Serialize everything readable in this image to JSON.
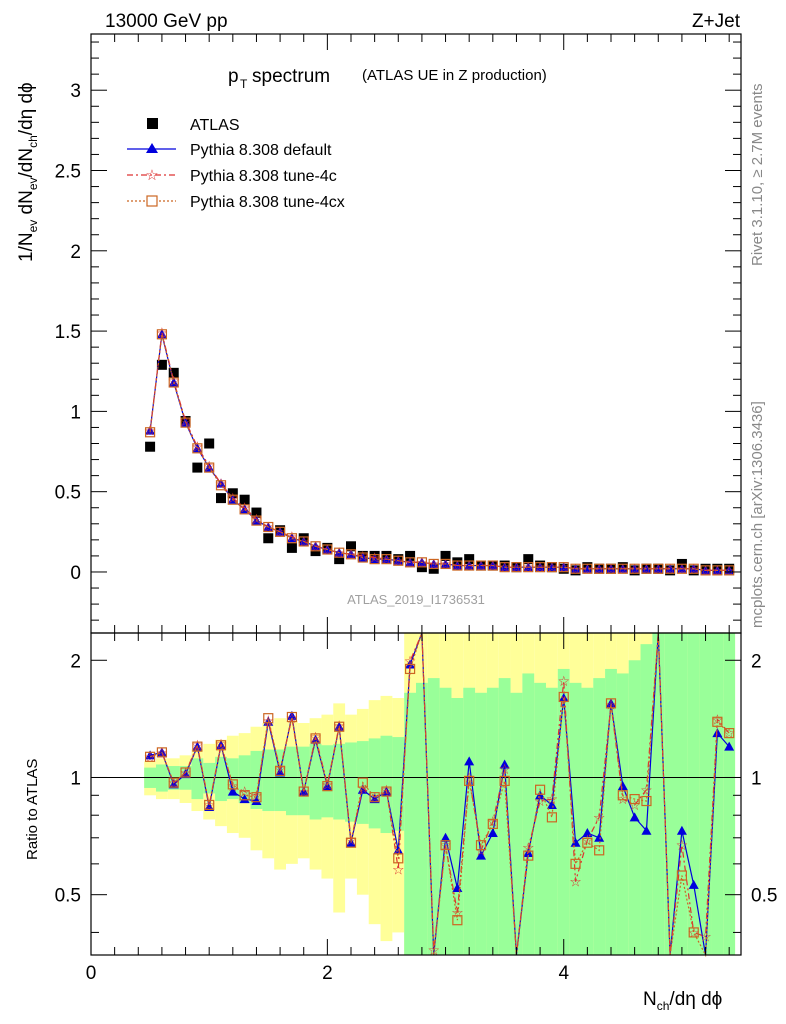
{
  "header": {
    "energy_label": "13000 GeV pp",
    "process_label": "Z+Jet",
    "plot_title_main": "p",
    "plot_title_sub": "T",
    "plot_title_rest": " spectrum",
    "plot_title_paren": "(ATLAS UE in Z production)",
    "analysis_id": "ATLAS_2019_I1736531"
  },
  "sidebar": {
    "rivet_text": "Rivet 3.1.10, ≥ 2.7M events",
    "mcplots_text": "mcplots.cern.ch [arXiv:1306.3436]"
  },
  "axes": {
    "ylabel_main": "1/N",
    "ylabel_ratio": "Ratio to ATLAS",
    "xlabel": "N_ch/dη dϕ",
    "main_yticks": [
      "0",
      "0.5",
      "1",
      "1.5",
      "2",
      "2.5",
      "3"
    ],
    "ratio_yticks": [
      "0.5",
      "1",
      "2"
    ],
    "xticks": [
      "0",
      "2",
      "4"
    ]
  },
  "legend": [
    {
      "name": "ATLAS",
      "color": "#000000",
      "marker": "filled-square",
      "line": "none"
    },
    {
      "name": "Pythia 8.308 default",
      "color": "#0000dd",
      "marker": "filled-triangle",
      "line": "solid"
    },
    {
      "name": "Pythia 8.308 tune-4c",
      "color": "#dd3333",
      "marker": "star",
      "line": "dashdot"
    },
    {
      "name": "Pythia 8.308 tune-4cx",
      "color": "#cc6622",
      "marker": "open-square",
      "line": "dotted"
    }
  ],
  "chart_data": [
    {
      "type": "scatter",
      "panel": "main",
      "xlim": [
        0,
        5.5
      ],
      "ylim": [
        -0.38,
        3.35
      ],
      "x": [
        0.5,
        0.6,
        0.7,
        0.8,
        0.9,
        1.0,
        1.1,
        1.2,
        1.3,
        1.4,
        1.5,
        1.6,
        1.7,
        1.8,
        1.9,
        2.0,
        2.1,
        2.2,
        2.3,
        2.4,
        2.5,
        2.6,
        2.7,
        2.8,
        2.9,
        3.0,
        3.1,
        3.2,
        3.3,
        3.4,
        3.5,
        3.6,
        3.7,
        3.8,
        3.9,
        4.0,
        4.1,
        4.2,
        4.3,
        4.4,
        4.5,
        4.6,
        4.7,
        4.8,
        4.9,
        5.0,
        5.1,
        5.2,
        5.3,
        5.4
      ],
      "series": [
        {
          "name": "ATLAS",
          "values": [
            0.78,
            1.29,
            1.24,
            0.94,
            0.65,
            0.8,
            0.46,
            0.49,
            0.45,
            0.37,
            0.21,
            0.26,
            0.15,
            0.21,
            0.13,
            0.15,
            0.08,
            0.16,
            0.1,
            0.1,
            0.1,
            0.08,
            0.1,
            0.03,
            0.02,
            0.1,
            0.06,
            0.08,
            0.04,
            0.04,
            0.04,
            0.03,
            0.08,
            0.04,
            0.03,
            0.02,
            0.01,
            0.03,
            0.02,
            0.02,
            0.03,
            0.01,
            0.02,
            0.02,
            0.01,
            0.05,
            0.01,
            0.02,
            0.02,
            0.02
          ]
        },
        {
          "name": "Pythia 8.308 default",
          "values": [
            0.88,
            1.48,
            1.18,
            0.93,
            0.77,
            0.65,
            0.55,
            0.45,
            0.39,
            0.32,
            0.28,
            0.25,
            0.21,
            0.19,
            0.16,
            0.14,
            0.12,
            0.11,
            0.09,
            0.08,
            0.08,
            0.07,
            0.06,
            0.06,
            0.05,
            0.05,
            0.04,
            0.04,
            0.04,
            0.04,
            0.03,
            0.03,
            0.03,
            0.03,
            0.03,
            0.03,
            0.02,
            0.02,
            0.02,
            0.02,
            0.02,
            0.02,
            0.02,
            0.02,
            0.02,
            0.02,
            0.02,
            0.01,
            0.01,
            0.01
          ]
        },
        {
          "name": "Pythia 8.308 tune-4c",
          "values": [
            0.88,
            1.49,
            1.19,
            0.94,
            0.78,
            0.66,
            0.55,
            0.46,
            0.4,
            0.33,
            0.28,
            0.25,
            0.22,
            0.19,
            0.16,
            0.14,
            0.12,
            0.11,
            0.1,
            0.09,
            0.08,
            0.07,
            0.06,
            0.06,
            0.05,
            0.05,
            0.04,
            0.04,
            0.04,
            0.04,
            0.03,
            0.03,
            0.03,
            0.03,
            0.03,
            0.03,
            0.02,
            0.02,
            0.02,
            0.02,
            0.02,
            0.02,
            0.02,
            0.02,
            0.02,
            0.02,
            0.02,
            0.01,
            0.01,
            0.01
          ]
        },
        {
          "name": "Pythia 8.308 tune-4cx",
          "values": [
            0.87,
            1.48,
            1.18,
            0.93,
            0.77,
            0.65,
            0.54,
            0.45,
            0.39,
            0.32,
            0.28,
            0.25,
            0.21,
            0.19,
            0.16,
            0.14,
            0.12,
            0.11,
            0.09,
            0.08,
            0.08,
            0.07,
            0.06,
            0.06,
            0.05,
            0.05,
            0.04,
            0.04,
            0.04,
            0.04,
            0.03,
            0.03,
            0.03,
            0.03,
            0.03,
            0.03,
            0.02,
            0.02,
            0.02,
            0.02,
            0.02,
            0.02,
            0.02,
            0.02,
            0.02,
            0.02,
            0.02,
            0.01,
            0.01,
            0.01
          ]
        }
      ]
    },
    {
      "type": "scatter",
      "panel": "ratio",
      "ylog": true,
      "reference_line": 1,
      "xlim": [
        0,
        5.5
      ],
      "ylim": [
        0.35,
        2.35
      ],
      "x": [
        0.5,
        0.6,
        0.7,
        0.8,
        0.9,
        1.0,
        1.1,
        1.2,
        1.3,
        1.4,
        1.5,
        1.6,
        1.7,
        1.8,
        1.9,
        2.0,
        2.1,
        2.2,
        2.3,
        2.4,
        2.5,
        2.6,
        2.7,
        2.8,
        2.9,
        3.0,
        3.1,
        3.2,
        3.3,
        3.4,
        3.5,
        3.6,
        3.7,
        3.8,
        3.9,
        4.0,
        4.1,
        4.2,
        4.3,
        4.4,
        4.5,
        4.6,
        4.7,
        4.8,
        4.9,
        5.0,
        5.1,
        5.2,
        5.3,
        5.4
      ],
      "bands": {
        "x_edges": [
          0.45,
          0.55,
          0.65,
          0.75,
          0.85,
          0.95,
          1.05,
          1.15,
          1.25,
          1.35,
          1.45,
          1.55,
          1.65,
          1.75,
          1.85,
          1.95,
          2.05,
          2.15,
          2.25,
          2.35,
          2.45,
          2.55,
          2.65,
          2.75,
          2.85,
          2.95,
          3.05,
          3.15,
          3.25,
          3.35,
          3.45,
          3.55,
          3.65,
          3.75,
          3.85,
          3.95,
          4.05,
          4.15,
          4.25,
          4.35,
          4.45,
          4.55,
          4.65,
          4.75,
          4.85,
          4.95,
          5.05,
          5.15,
          5.25,
          5.35,
          5.45
        ],
        "green_lo": [
          0.94,
          0.92,
          0.93,
          0.93,
          0.88,
          0.91,
          0.87,
          0.88,
          0.86,
          0.83,
          0.82,
          0.82,
          0.8,
          0.8,
          0.78,
          0.79,
          0.78,
          0.77,
          0.76,
          0.74,
          0.72,
          0.73,
          0.35,
          0.35,
          0.35,
          0.35,
          0.35,
          0.35,
          0.35,
          0.35,
          0.35,
          0.35,
          0.35,
          0.35,
          0.35,
          0.35,
          0.35,
          0.35,
          0.35,
          0.35,
          0.35,
          0.35,
          0.35,
          0.35,
          0.35,
          0.35,
          0.35,
          0.35,
          0.35,
          0.35
        ],
        "green_hi": [
          1.06,
          1.08,
          1.07,
          1.07,
          1.12,
          1.09,
          1.13,
          1.12,
          1.14,
          1.17,
          1.18,
          1.18,
          1.2,
          1.2,
          1.22,
          1.21,
          1.22,
          1.23,
          1.24,
          1.26,
          1.28,
          1.27,
          1.65,
          1.75,
          1.8,
          1.7,
          1.6,
          1.7,
          1.65,
          1.7,
          1.8,
          1.65,
          1.85,
          1.75,
          1.7,
          1.9,
          1.75,
          1.7,
          1.8,
          1.9,
          1.85,
          2.0,
          2.2,
          2.35,
          2.35,
          2.35,
          2.35,
          2.35,
          2.35,
          2.35
        ],
        "yellow_lo": [
          0.9,
          0.88,
          0.88,
          0.86,
          0.82,
          0.78,
          0.75,
          0.72,
          0.7,
          0.65,
          0.62,
          0.58,
          0.6,
          0.62,
          0.58,
          0.55,
          0.45,
          0.55,
          0.5,
          0.42,
          0.38,
          0.4,
          0.35,
          0.35,
          0.35,
          0.35,
          0.35,
          0.35,
          0.35,
          0.35,
          0.35,
          0.35,
          0.35,
          0.35,
          0.35,
          0.35,
          0.35,
          0.35,
          0.35,
          0.35,
          0.35,
          0.35,
          0.35,
          0.35,
          0.35,
          0.35,
          0.35,
          0.35,
          0.35,
          0.35
        ],
        "yellow_hi": [
          1.1,
          1.12,
          1.12,
          1.14,
          1.18,
          1.22,
          1.25,
          1.28,
          1.3,
          1.35,
          1.38,
          1.42,
          1.4,
          1.38,
          1.42,
          1.45,
          1.55,
          1.45,
          1.5,
          1.58,
          1.62,
          1.6,
          2.35,
          2.35,
          2.35,
          2.35,
          2.35,
          2.35,
          2.35,
          2.35,
          2.35,
          2.35,
          2.35,
          2.35,
          2.35,
          2.35,
          2.35,
          2.35,
          2.35,
          2.35,
          2.35,
          2.35,
          2.35,
          2.35,
          2.35,
          2.35,
          2.35,
          2.35,
          2.35,
          2.35
        ]
      },
      "series": [
        {
          "name": "Pythia 8.308 default",
          "values": [
            1.14,
            1.16,
            0.96,
            1.02,
            1.2,
            0.84,
            1.21,
            0.92,
            0.88,
            0.87,
            1.39,
            1.03,
            1.44,
            0.92,
            1.25,
            0.95,
            1.35,
            0.68,
            0.93,
            0.88,
            0.92,
            0.65,
            1.95,
            2.4,
            0.34,
            0.7,
            0.52,
            1.1,
            0.63,
            0.72,
            1.08,
            0.32,
            0.64,
            0.9,
            0.85,
            1.6,
            0.68,
            0.72,
            0.7,
            1.55,
            0.95,
            0.79,
            0.73,
            2.4,
            0.34,
            0.73,
            0.53,
            0.34,
            1.3,
            1.2
          ]
        },
        {
          "name": "Pythia 8.308 tune-4c",
          "values": [
            1.13,
            1.16,
            0.97,
            1.03,
            1.21,
            0.85,
            1.22,
            0.95,
            0.92,
            0.9,
            1.4,
            1.05,
            1.42,
            0.92,
            1.27,
            0.96,
            1.36,
            0.69,
            0.94,
            0.89,
            0.93,
            0.58,
            1.99,
            2.4,
            0.36,
            0.67,
            0.45,
            1.0,
            0.65,
            0.77,
            1.05,
            0.33,
            0.66,
            0.87,
            0.88,
            1.77,
            0.54,
            0.69,
            0.79,
            1.54,
            0.88,
            0.85,
            0.93,
            2.4,
            0.35,
            0.67,
            0.4,
            0.39,
            1.41,
            1.3
          ]
        },
        {
          "name": "Pythia 8.308 tune-4cx",
          "values": [
            1.13,
            1.16,
            0.97,
            1.03,
            1.2,
            0.85,
            1.21,
            0.96,
            0.9,
            0.89,
            1.42,
            1.04,
            1.43,
            0.92,
            1.26,
            0.95,
            1.35,
            0.68,
            0.97,
            0.89,
            0.92,
            0.62,
            1.9,
            2.4,
            0.33,
            0.67,
            0.43,
            0.98,
            0.67,
            0.76,
            0.98,
            0.33,
            0.63,
            0.93,
            0.79,
            1.61,
            0.6,
            0.68,
            0.65,
            1.55,
            0.9,
            0.88,
            0.87,
            2.4,
            0.34,
            0.56,
            0.4,
            0.33,
            1.39,
            1.3
          ]
        }
      ]
    }
  ]
}
